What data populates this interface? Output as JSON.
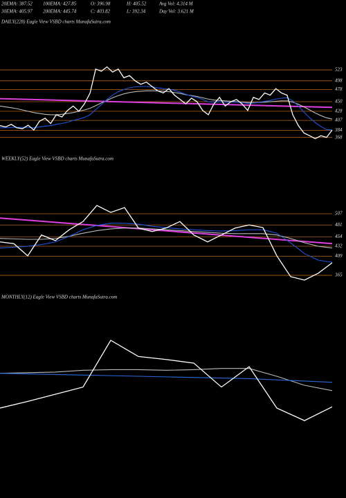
{
  "header": {
    "row1": [
      "20EMA: 387.52",
      "100EMA: 427.85",
      "O: 396.98",
      "H: 405.52",
      "Avg Vol: 4.314  M"
    ],
    "row2": [
      "30EMA: 405.97",
      "200EMA: 445.74",
      "C: 403.82",
      "L: 392.34",
      "Day Vol: 3.621  M"
    ]
  },
  "chart_data": [
    {
      "type": "line",
      "title": "DAILY(228) Eagle  View  VSBD charts MunafaSutra.com",
      "categories": [
        null,
        null,
        null,
        null,
        null,
        null,
        null,
        null,
        null,
        null,
        null,
        null,
        null,
        null,
        null,
        null,
        null,
        null,
        null,
        null,
        null,
        null,
        null,
        null,
        null,
        null,
        null,
        null,
        null,
        null,
        null,
        null,
        null,
        null,
        null,
        null,
        null,
        null,
        null,
        null,
        null,
        null,
        null,
        null,
        null,
        null,
        null,
        null,
        null,
        null,
        null,
        null,
        null,
        null,
        null,
        null,
        null,
        null,
        null,
        null
      ],
      "ylim": [
        350,
        620
      ],
      "yticks": [
        523,
        498,
        478,
        450,
        428,
        407,
        384,
        368
      ],
      "level_color": "#b8651a",
      "series": [
        {
          "color": "#bbbbbb",
          "values": [
            440,
            438,
            436,
            434,
            431,
            428,
            425,
            423,
            421,
            420,
            420,
            421,
            423,
            425,
            428,
            431,
            435,
            441,
            447,
            453,
            459,
            464,
            468,
            471,
            473,
            474,
            475,
            475,
            475,
            474,
            473,
            471,
            469,
            466,
            464,
            462,
            459,
            456,
            454,
            453,
            452,
            451,
            450,
            449,
            448,
            448,
            448,
            449,
            450,
            451,
            452,
            452,
            449,
            444,
            438,
            431,
            424,
            418,
            413,
            410
          ]
        },
        {
          "color": "#2255dd",
          "values": [
            390,
            390,
            391,
            391,
            391,
            391,
            390,
            392,
            394,
            395,
            398,
            400,
            403,
            407,
            410,
            414,
            420,
            432,
            443,
            455,
            465,
            473,
            478,
            482,
            484,
            485,
            485,
            484,
            482,
            480,
            479,
            476,
            472,
            467,
            463,
            460,
            455,
            450,
            449,
            450,
            449,
            449,
            449,
            448,
            446,
            447,
            448,
            451,
            453,
            456,
            458,
            459,
            452,
            440,
            426,
            413,
            402,
            393,
            386,
            385
          ]
        },
        {
          "color": "#ffffff",
          "values": [
            395,
            392,
            398,
            390,
            388,
            396,
            385,
            405,
            412,
            400,
            420,
            415,
            430,
            440,
            428,
            445,
            470,
            525,
            520,
            530,
            518,
            525,
            505,
            510,
            498,
            490,
            495,
            485,
            475,
            470,
            480,
            465,
            455,
            445,
            458,
            450,
            430,
            420,
            445,
            460,
            440,
            450,
            455,
            445,
            430,
            460,
            455,
            470,
            465,
            480,
            470,
            465,
            420,
            395,
            378,
            372,
            365,
            372,
            368,
            385
          ]
        }
      ],
      "trendline": {
        "color": "#e040e0",
        "values": [
          457,
          437
        ]
      }
    },
    {
      "type": "line",
      "title": "WEEKLY(52) Eagle  View  VSBD charts MunafaSutra.com",
      "categories": [
        null,
        null,
        null,
        null,
        null,
        null,
        null,
        null,
        null,
        null,
        null,
        null,
        null,
        null,
        null,
        null,
        null,
        null,
        null,
        null,
        null,
        null,
        null,
        null,
        null
      ],
      "ylim": [
        346,
        593
      ],
      "yticks": [
        507,
        481,
        454,
        432,
        409,
        365
      ],
      "level_color": "#b8651a",
      "series": [
        {
          "color": "#bbbbbb",
          "values": [
            450,
            449,
            448,
            448,
            450,
            455,
            462,
            468,
            472,
            474,
            474,
            472,
            470,
            468,
            466,
            464,
            462,
            461,
            461,
            461,
            458,
            450,
            440,
            432,
            428
          ]
        },
        {
          "color": "#2255dd",
          "values": [
            428,
            430,
            432,
            436,
            442,
            455,
            470,
            480,
            485,
            485,
            483,
            478,
            475,
            472,
            470,
            468,
            467,
            468,
            470,
            470,
            462,
            440,
            415,
            400,
            395
          ]
        },
        {
          "color": "#ffffff",
          "values": [
            442,
            438,
            410,
            458,
            445,
            470,
            489,
            526,
            510,
            521,
            474,
            466,
            474,
            489,
            458,
            442,
            458,
            474,
            481,
            475,
            410,
            362,
            354,
            370,
            394
          ]
        }
      ],
      "trendline": {
        "color": "#e040e0",
        "values": [
          497,
          438
        ]
      }
    },
    {
      "type": "line",
      "title": "MONTHLY(12) Eagle  View  VSBD charts MunafaSutra.com",
      "categories": [
        null,
        null,
        null,
        null,
        null,
        null,
        null,
        null,
        null,
        null,
        null,
        null,
        null
      ],
      "ylim": [
        250,
        550
      ],
      "series": [
        {
          "color": "#bbbbbb",
          "values": [
            435,
            436,
            437,
            440,
            441,
            441,
            440,
            441,
            443,
            443,
            430,
            415,
            406
          ]
        },
        {
          "color": "#2a6ae0",
          "values": [
            435,
            434,
            433,
            432,
            431,
            430,
            429,
            428,
            427,
            426,
            424,
            422,
            420
          ]
        },
        {
          "color": "#ffffff",
          "values": [
            377,
            388,
            400,
            412,
            490,
            463,
            458,
            452,
            412,
            446,
            377,
            356,
            379
          ]
        }
      ]
    }
  ]
}
